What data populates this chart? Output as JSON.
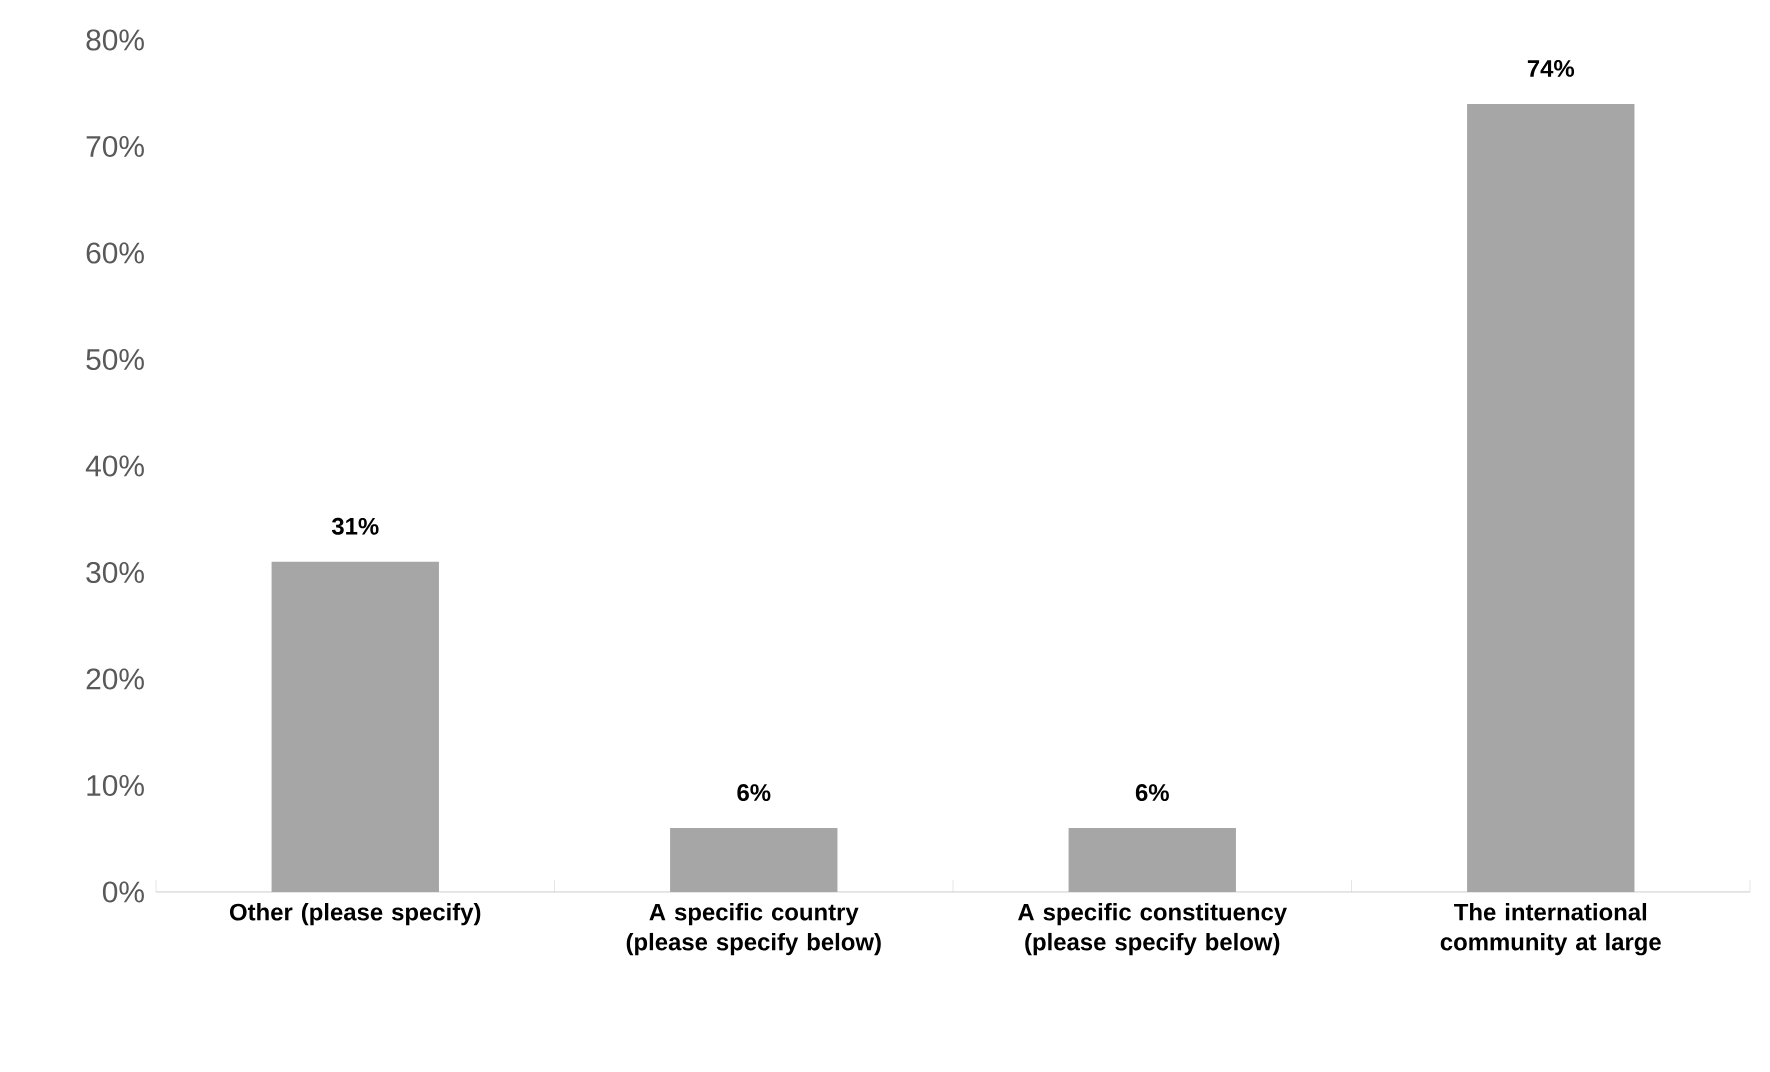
{
  "chart_data": {
    "type": "bar",
    "categories": [
      "Other (please specify)",
      "A specific country (please specify below)",
      "A specific constituency (please specify below)",
      "The international community at large"
    ],
    "values": [
      31,
      6,
      6,
      74
    ],
    "value_labels": [
      "31%",
      "6%",
      "6%",
      "74%"
    ],
    "color": "#a6a6a6",
    "ylim": [
      0,
      80
    ],
    "yticks": [
      {
        "value": 0,
        "label": "0%"
      },
      {
        "value": 10,
        "label": "10%"
      },
      {
        "value": 20,
        "label": "20%"
      },
      {
        "value": 30,
        "label": "30%"
      },
      {
        "value": 40,
        "label": "40%"
      },
      {
        "value": 50,
        "label": "50%"
      },
      {
        "value": 60,
        "label": "60%"
      },
      {
        "value": 70,
        "label": "70%"
      },
      {
        "value": 80,
        "label": "80%"
      }
    ],
    "grid": false
  }
}
